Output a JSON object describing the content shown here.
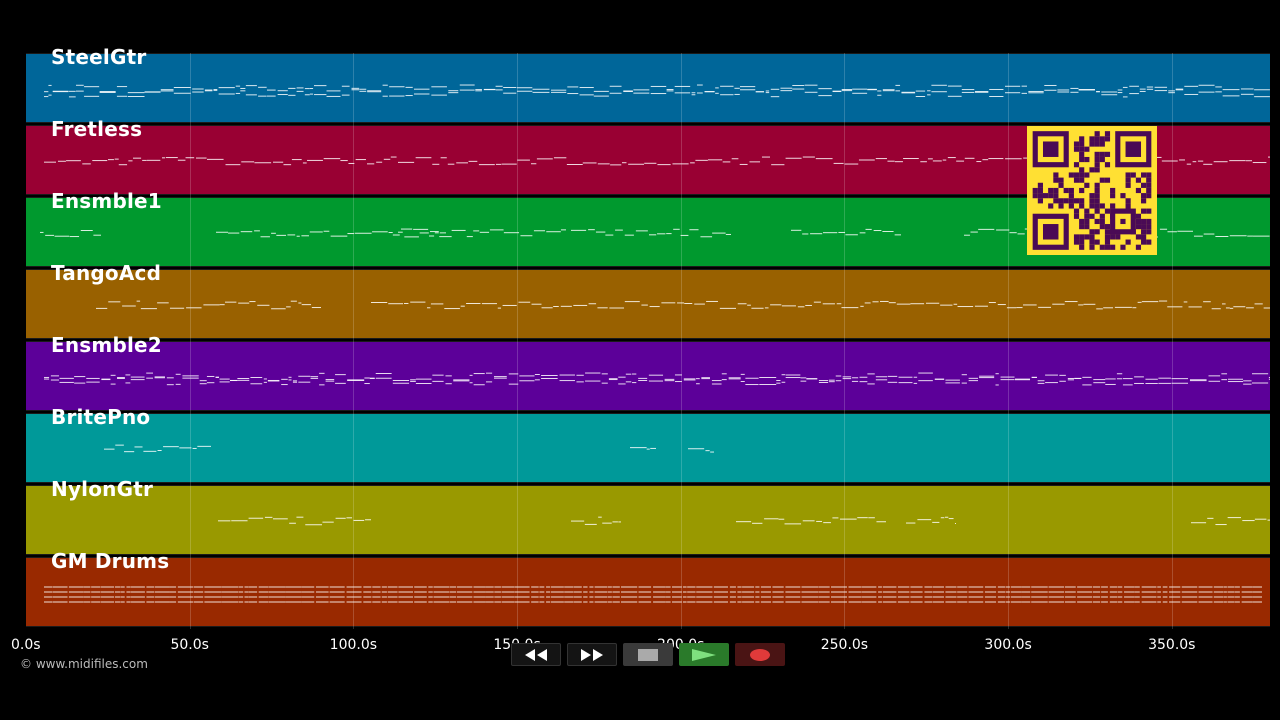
{
  "tracks": [
    {
      "name": "SteelGtr",
      "color": "#006699"
    },
    {
      "name": "Fretless",
      "color": "#990033"
    },
    {
      "name": "Ensmble1",
      "color": "#00992e"
    },
    {
      "name": "TangoAcd",
      "color": "#996100"
    },
    {
      "name": "Ensmble2",
      "color": "#5c0099"
    },
    {
      "name": "BritePno",
      "color": "#009999"
    },
    {
      "name": "NylonGtr",
      "color": "#999900"
    },
    {
      "name": "GM Drums",
      "color": "#992900"
    }
  ],
  "timeline": {
    "ticks": [
      "0.0s",
      "50.0s",
      "100.0s",
      "150.0s",
      "200.0s",
      "250.0s",
      "300.0s",
      "350.0s"
    ],
    "tick_values": [
      0,
      50,
      100,
      150,
      200,
      250,
      300,
      350
    ],
    "max_seconds": 380
  },
  "transport": {
    "rewind_icon": "rewind-icon",
    "fast_forward_icon": "fast-forward-icon",
    "stop_icon": "stop-icon",
    "play_icon": "play-icon",
    "record_icon": "record-icon",
    "play_color": "#7ee07e",
    "record_color": "#e03a3a"
  },
  "copyright": "© www.midifiles.com",
  "qr": {
    "fg": "#4a0a55",
    "bg": "#ffe033"
  }
}
